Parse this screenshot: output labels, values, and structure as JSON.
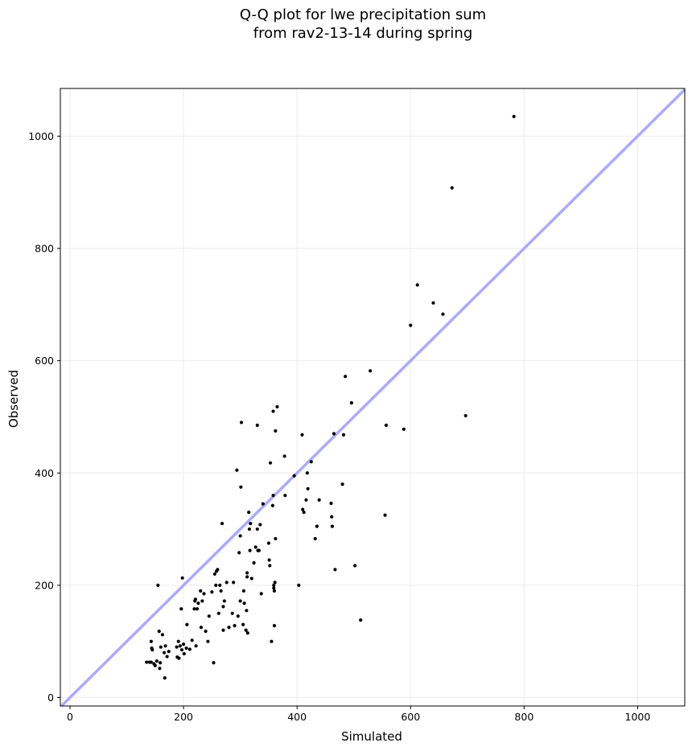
{
  "chart_data": {
    "type": "scatter",
    "title": [
      "Q-Q plot for lwe precipitation sum",
      "from rav2-13-14 during spring"
    ],
    "xlabel": "Simulated",
    "ylabel": "Observed",
    "xlim": [
      -17,
      1083
    ],
    "ylim": [
      -15,
      1085
    ],
    "xticks": [
      0,
      200,
      400,
      600,
      800,
      1000
    ],
    "yticks": [
      0,
      200,
      400,
      600,
      800,
      1000
    ],
    "grid": true,
    "reference_line": {
      "type": "identity",
      "color": "#aaaaff"
    },
    "point_color": "#000000",
    "points": [
      [
        135,
        63
      ],
      [
        140,
        63
      ],
      [
        143,
        63
      ],
      [
        143,
        100
      ],
      [
        144,
        88
      ],
      [
        145,
        85
      ],
      [
        148,
        60
      ],
      [
        150,
        57
      ],
      [
        153,
        65
      ],
      [
        155,
        200
      ],
      [
        157,
        118
      ],
      [
        158,
        52
      ],
      [
        159,
        62
      ],
      [
        160,
        90
      ],
      [
        163,
        112
      ],
      [
        166,
        80
      ],
      [
        167,
        35
      ],
      [
        168,
        92
      ],
      [
        171,
        73
      ],
      [
        174,
        82
      ],
      [
        188,
        90
      ],
      [
        189,
        72
      ],
      [
        191,
        100
      ],
      [
        192,
        70
      ],
      [
        194,
        92
      ],
      [
        196,
        158
      ],
      [
        197,
        85
      ],
      [
        198,
        213
      ],
      [
        200,
        95
      ],
      [
        201,
        78
      ],
      [
        205,
        88
      ],
      [
        206,
        130
      ],
      [
        211,
        86
      ],
      [
        215,
        102
      ],
      [
        219,
        158
      ],
      [
        220,
        172
      ],
      [
        221,
        175
      ],
      [
        222,
        92
      ],
      [
        224,
        158
      ],
      [
        226,
        168
      ],
      [
        230,
        190
      ],
      [
        231,
        125
      ],
      [
        233,
        172
      ],
      [
        236,
        185
      ],
      [
        239,
        118
      ],
      [
        243,
        100
      ],
      [
        245,
        145
      ],
      [
        250,
        188
      ],
      [
        253,
        62
      ],
      [
        255,
        220
      ],
      [
        257,
        200
      ],
      [
        258,
        225
      ],
      [
        260,
        228
      ],
      [
        262,
        150
      ],
      [
        264,
        200
      ],
      [
        266,
        190
      ],
      [
        268,
        310
      ],
      [
        270,
        120
      ],
      [
        270,
        162
      ],
      [
        272,
        172
      ],
      [
        276,
        205
      ],
      [
        280,
        125
      ],
      [
        286,
        150
      ],
      [
        288,
        205
      ],
      [
        290,
        128
      ],
      [
        294,
        405
      ],
      [
        296,
        145
      ],
      [
        298,
        258
      ],
      [
        300,
        172
      ],
      [
        300,
        288
      ],
      [
        301,
        375
      ],
      [
        302,
        490
      ],
      [
        305,
        130
      ],
      [
        306,
        190
      ],
      [
        307,
        168
      ],
      [
        310,
        120
      ],
      [
        311,
        155
      ],
      [
        312,
        215
      ],
      [
        312,
        222
      ],
      [
        313,
        115
      ],
      [
        315,
        330
      ],
      [
        316,
        300
      ],
      [
        317,
        262
      ],
      [
        318,
        310
      ],
      [
        320,
        212
      ],
      [
        324,
        240
      ],
      [
        327,
        268
      ],
      [
        330,
        485
      ],
      [
        330,
        300
      ],
      [
        331,
        262
      ],
      [
        333,
        262
      ],
      [
        335,
        308
      ],
      [
        337,
        185
      ],
      [
        340,
        345
      ],
      [
        350,
        275
      ],
      [
        351,
        245
      ],
      [
        352,
        235
      ],
      [
        353,
        418
      ],
      [
        355,
        100
      ],
      [
        357,
        342
      ],
      [
        358,
        510
      ],
      [
        358,
        360
      ],
      [
        359,
        195
      ],
      [
        359,
        200
      ],
      [
        360,
        190
      ],
      [
        360,
        128
      ],
      [
        361,
        205
      ],
      [
        362,
        283
      ],
      [
        362,
        475
      ],
      [
        365,
        518
      ],
      [
        378,
        430
      ],
      [
        379,
        360
      ],
      [
        395,
        395
      ],
      [
        403,
        200
      ],
      [
        409,
        468
      ],
      [
        410,
        335
      ],
      [
        412,
        330
      ],
      [
        416,
        352
      ],
      [
        418,
        400
      ],
      [
        419,
        372
      ],
      [
        425,
        420
      ],
      [
        432,
        283
      ],
      [
        435,
        305
      ],
      [
        439,
        352
      ],
      [
        460,
        346
      ],
      [
        461,
        322
      ],
      [
        462,
        305
      ],
      [
        465,
        470
      ],
      [
        467,
        228
      ],
      [
        480,
        380
      ],
      [
        482,
        468
      ],
      [
        485,
        572
      ],
      [
        496,
        525
      ],
      [
        502,
        235
      ],
      [
        512,
        138
      ],
      [
        529,
        582
      ],
      [
        555,
        325
      ],
      [
        557,
        485
      ],
      [
        588,
        478
      ],
      [
        600,
        663
      ],
      [
        612,
        735
      ],
      [
        640,
        703
      ],
      [
        657,
        683
      ],
      [
        697,
        502
      ],
      [
        673,
        908
      ],
      [
        782,
        1035
      ]
    ]
  }
}
